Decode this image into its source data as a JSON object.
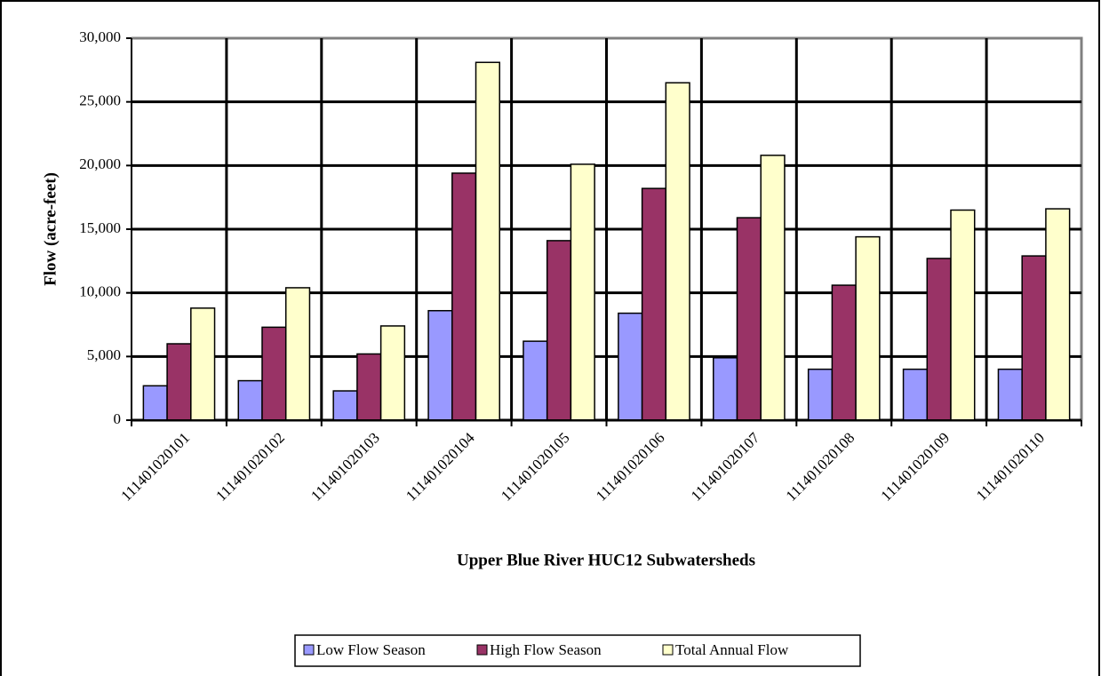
{
  "chart_data": {
    "type": "bar",
    "xlabel": "Upper Blue River HUC12 Subwatersheds",
    "ylabel": "Flow (acre-feet)",
    "categories": [
      "111401020101",
      "111401020102",
      "111401020103",
      "111401020104",
      "111401020105",
      "111401020106",
      "111401020107",
      "111401020108",
      "111401020109",
      "111401020110"
    ],
    "series": [
      {
        "name": "Low Flow Season",
        "color": "#9999ff",
        "values": [
          2700,
          3100,
          2300,
          8600,
          6200,
          8400,
          4900,
          4000,
          4000,
          4000
        ]
      },
      {
        "name": "High Flow Season",
        "color": "#993366",
        "values": [
          6000,
          7300,
          5200,
          19400,
          14100,
          18200,
          15900,
          10600,
          12700,
          12900
        ]
      },
      {
        "name": "Total Annual Flow",
        "color": "#ffffcc",
        "values": [
          8800,
          10400,
          7400,
          28100,
          20100,
          26500,
          20800,
          14400,
          16500,
          16600
        ]
      }
    ],
    "ylim": [
      0,
      30000
    ],
    "yticks": [
      0,
      {
        "value": 5000,
        "label": "5,000"
      },
      {
        "value": 10000,
        "label": "10,000"
      },
      {
        "value": 15000,
        "label": "15,000"
      },
      {
        "value": 20000,
        "label": "20,000"
      },
      {
        "value": 25000,
        "label": "25,000"
      },
      {
        "value": 30000,
        "label": "30,000"
      }
    ],
    "grid": true,
    "legend": "bottom"
  }
}
